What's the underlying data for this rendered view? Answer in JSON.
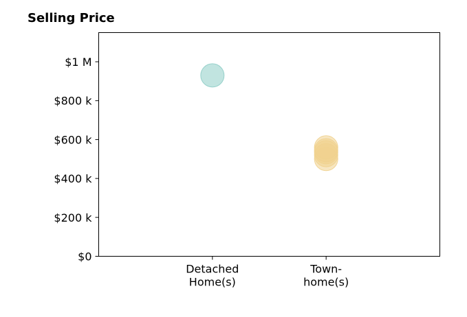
{
  "chart_data": {
    "type": "scatter",
    "title": "Selling Price",
    "categories": [
      "Detached\nHome(s)",
      "Town-\nhome(s)"
    ],
    "ylim": [
      0,
      1150000
    ],
    "y_ticks": [
      {
        "value": 0,
        "label": "$0"
      },
      {
        "value": 200000,
        "label": "$200 k"
      },
      {
        "value": 400000,
        "label": "$400 k"
      },
      {
        "value": 600000,
        "label": "$600 k"
      },
      {
        "value": 800000,
        "label": "$800 k"
      },
      {
        "value": 1000000,
        "label": "$1 M"
      }
    ],
    "series": [
      {
        "category_index": 0,
        "color": "#8ecdc6",
        "values": [
          930000
        ]
      },
      {
        "category_index": 1,
        "color": "#f0d28e",
        "values": [
          500000,
          520000,
          535000,
          545000,
          560000
        ]
      }
    ],
    "grid": false,
    "legend": "none"
  }
}
